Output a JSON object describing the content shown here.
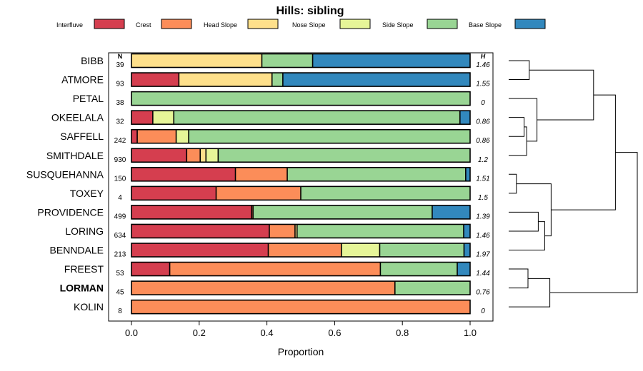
{
  "chart_data": {
    "type": "bar",
    "stacked": true,
    "orientation": "horizontal",
    "title": "Hills: sibling",
    "xlabel": "Proportion",
    "ylabel": "",
    "xlim": [
      0,
      1
    ],
    "xticks": [
      0,
      0.2,
      0.4,
      0.6,
      0.8,
      1
    ],
    "xtick_labels": [
      "0.0",
      "0.2",
      "0.4",
      "0.6",
      "0.8",
      "1.0"
    ],
    "n_header": "N",
    "h_header": "H",
    "legend_position": "top",
    "series": [
      {
        "name": "Interfluve",
        "color": "#d53e4f"
      },
      {
        "name": "Crest",
        "color": "#fc8d59"
      },
      {
        "name": "Head Slope",
        "color": "#fee08b"
      },
      {
        "name": "Nose Slope",
        "color": "#e6f598"
      },
      {
        "name": "Side Slope",
        "color": "#99d594"
      },
      {
        "name": "Base Slope",
        "color": "#3288bd"
      }
    ],
    "rows": [
      {
        "name": "BIBB",
        "n": "39",
        "h": "1.46",
        "bold": false,
        "values": [
          0,
          0,
          0.385,
          0,
          0.15,
          0.465
        ]
      },
      {
        "name": "ATMORE",
        "n": "93",
        "h": "1.55",
        "bold": false,
        "values": [
          0.14,
          0,
          0.275,
          0,
          0.032,
          0.553
        ]
      },
      {
        "name": "PETAL",
        "n": "38",
        "h": "0",
        "bold": false,
        "values": [
          0,
          0,
          0,
          0,
          1.0,
          0
        ]
      },
      {
        "name": "OKEELALA",
        "n": "32",
        "h": "0.86",
        "bold": false,
        "values": [
          0.063,
          0,
          0,
          0.062,
          0.845,
          0.03
        ]
      },
      {
        "name": "SAFFELL",
        "n": "242",
        "h": "0.86",
        "bold": false,
        "values": [
          0.017,
          0.115,
          0,
          0.037,
          0.831,
          0
        ]
      },
      {
        "name": "SMITHDALE",
        "n": "930",
        "h": "1.2",
        "bold": false,
        "values": [
          0.163,
          0.04,
          0.017,
          0.036,
          0.744,
          0
        ]
      },
      {
        "name": "SUSQUEHANNA",
        "n": "150",
        "h": "1.51",
        "bold": false,
        "values": [
          0.307,
          0.153,
          0,
          0,
          0.527,
          0.013
        ]
      },
      {
        "name": "TOXEY",
        "n": "4",
        "h": "1.5",
        "bold": false,
        "values": [
          0.25,
          0.25,
          0,
          0,
          0.5,
          0
        ]
      },
      {
        "name": "PROVIDENCE",
        "n": "499",
        "h": "1.39",
        "bold": false,
        "values": [
          0.355,
          0.004,
          0,
          0,
          0.529,
          0.112
        ]
      },
      {
        "name": "LORING",
        "n": "634",
        "h": "1.46",
        "bold": false,
        "values": [
          0.407,
          0.076,
          0.006,
          0,
          0.492,
          0.019
        ]
      },
      {
        "name": "BENNDALE",
        "n": "213",
        "h": "1.97",
        "bold": false,
        "values": [
          0.404,
          0.216,
          0,
          0.113,
          0.249,
          0.018
        ]
      },
      {
        "name": "FREEST",
        "n": "53",
        "h": "1.44",
        "bold": false,
        "values": [
          0.113,
          0.622,
          0,
          0,
          0.227,
          0.038
        ]
      },
      {
        "name": "LORMAN",
        "n": "45",
        "h": "0.76",
        "bold": true,
        "values": [
          0,
          0.778,
          0,
          0,
          0.222,
          0
        ]
      },
      {
        "name": "KOLIN",
        "n": "8",
        "h": "0",
        "bold": false,
        "values": [
          0,
          1.0,
          0,
          0,
          0,
          0
        ]
      }
    ],
    "dendrogram": {
      "type": "hierarchical-clustering",
      "leaf_order": [
        "BIBB",
        "ATMORE",
        "PETAL",
        "OKEELALA",
        "SAFFELL",
        "SMITHDALE",
        "SUSQUEHANNA",
        "TOXEY",
        "PROVIDENCE",
        "LORING",
        "BENNDALE",
        "FREEST",
        "LORMAN",
        "KOLIN"
      ],
      "merges": [
        {
          "a": 3,
          "b": 4,
          "height": 0.12
        },
        {
          "a": 14,
          "b": 5,
          "height": 0.14
        },
        {
          "a": 0,
          "b": 1,
          "height": 0.16
        },
        {
          "a": 2,
          "b": 15,
          "height": 0.22
        },
        {
          "a": 8,
          "b": 9,
          "height": 0.23
        },
        {
          "a": 11,
          "b": 12,
          "height": 0.15
        },
        {
          "a": 6,
          "b": 7,
          "height": 0.06
        },
        {
          "a": 18,
          "b": 10,
          "height": 0.28
        },
        {
          "a": 20,
          "b": 21,
          "height": 0.33
        },
        {
          "a": 19,
          "b": 13,
          "height": 0.32
        },
        {
          "a": 16,
          "b": 17,
          "height": 0.66
        },
        {
          "a": 24,
          "b": 22,
          "height": 0.83
        },
        {
          "a": 25,
          "b": 23,
          "height": 1.0
        }
      ]
    }
  }
}
